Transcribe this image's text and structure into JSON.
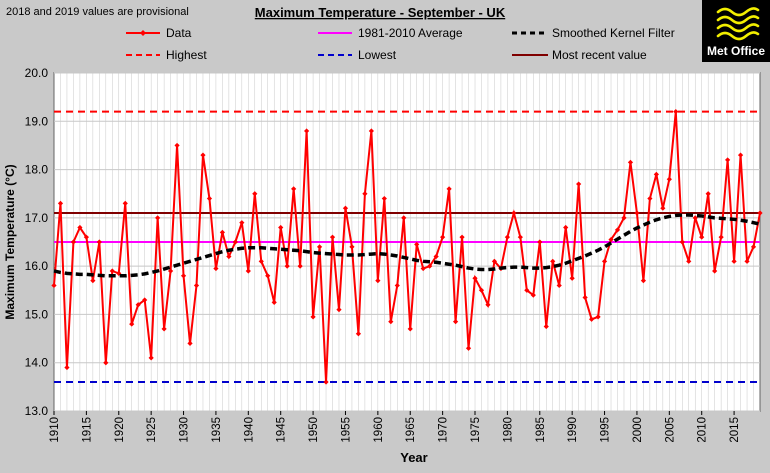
{
  "note": "2018 and 2019 values are provisional",
  "logo": {
    "text": "Met Office"
  },
  "chart_data": {
    "type": "line",
    "title": "Maximum Temperature - September - UK",
    "xlabel": "Year",
    "ylabel": "Maximum Temperature (°C)",
    "xlim": [
      1910,
      2019
    ],
    "ylim": [
      13.0,
      20.0
    ],
    "yticks": [
      13.0,
      14.0,
      15.0,
      16.0,
      17.0,
      18.0,
      19.0,
      20.0
    ],
    "xticks": [
      1910,
      1915,
      1920,
      1925,
      1930,
      1935,
      1940,
      1945,
      1950,
      1955,
      1960,
      1965,
      1970,
      1975,
      1980,
      1985,
      1990,
      1995,
      2000,
      2005,
      2010,
      2015
    ],
    "grid": true,
    "legend": {
      "data": "Data",
      "average": "1981-2010 Average",
      "smoothed": "Smoothed Kernel Filter",
      "highest": "Highest",
      "lowest": "Lowest",
      "recent": "Most recent value"
    },
    "colors": {
      "data": "#ff0000",
      "average": "#ff00ff",
      "smoothed": "#000000",
      "highest": "#ff0000",
      "lowest": "#0000cc",
      "recent": "#800000",
      "plot_bg": "#ffffff",
      "page_bg": "#c9c9c9",
      "grid": "#c8c8c8"
    },
    "x": [
      1910,
      1911,
      1912,
      1913,
      1914,
      1915,
      1916,
      1917,
      1918,
      1919,
      1920,
      1921,
      1922,
      1923,
      1924,
      1925,
      1926,
      1927,
      1928,
      1929,
      1930,
      1931,
      1932,
      1933,
      1934,
      1935,
      1936,
      1937,
      1938,
      1939,
      1940,
      1941,
      1942,
      1943,
      1944,
      1945,
      1946,
      1947,
      1948,
      1949,
      1950,
      1951,
      1952,
      1953,
      1954,
      1955,
      1956,
      1957,
      1958,
      1959,
      1960,
      1961,
      1962,
      1963,
      1964,
      1965,
      1966,
      1967,
      1968,
      1969,
      1970,
      1971,
      1972,
      1973,
      1974,
      1975,
      1976,
      1977,
      1978,
      1979,
      1980,
      1981,
      1982,
      1983,
      1984,
      1985,
      1986,
      1987,
      1988,
      1989,
      1990,
      1991,
      1992,
      1993,
      1994,
      1995,
      1996,
      1997,
      1998,
      1999,
      2000,
      2001,
      2002,
      2003,
      2004,
      2005,
      2006,
      2007,
      2008,
      2009,
      2010,
      2011,
      2012,
      2013,
      2014,
      2015,
      2016,
      2017,
      2018,
      2019
    ],
    "series": [
      {
        "name": "Data",
        "values": [
          15.6,
          17.3,
          13.9,
          16.5,
          16.8,
          16.6,
          15.7,
          16.5,
          14.0,
          15.9,
          15.85,
          17.3,
          14.8,
          15.2,
          15.3,
          14.1,
          17.0,
          14.7,
          15.9,
          18.5,
          15.8,
          14.4,
          15.6,
          18.3,
          17.4,
          15.95,
          16.7,
          16.2,
          16.5,
          16.9,
          15.9,
          17.5,
          16.1,
          15.8,
          15.25,
          16.8,
          16.0,
          17.6,
          16.0,
          18.8,
          14.95,
          16.4,
          13.6,
          16.6,
          15.1,
          17.2,
          16.4,
          14.6,
          17.5,
          18.8,
          15.7,
          17.4,
          14.85,
          15.6,
          17.0,
          14.7,
          16.45,
          15.95,
          16.0,
          16.2,
          16.6,
          17.6,
          14.85,
          16.6,
          14.3,
          15.75,
          15.5,
          15.2,
          16.1,
          15.95,
          16.6,
          17.1,
          16.6,
          15.5,
          15.4,
          16.5,
          14.75,
          16.1,
          15.6,
          16.8,
          15.75,
          17.7,
          15.35,
          14.9,
          14.95,
          16.1,
          16.55,
          16.75,
          17.0,
          18.15,
          17.1,
          15.7,
          17.4,
          17.9,
          17.2,
          17.8,
          19.2,
          16.5,
          16.1,
          17.0,
          16.6,
          17.5,
          15.9,
          16.6,
          18.2,
          16.1,
          18.3,
          16.1,
          16.4,
          17.1
        ]
      },
      {
        "name": "Smoothed Kernel Filter",
        "values": [
          15.9,
          15.87,
          15.85,
          15.84,
          15.83,
          15.83,
          15.82,
          15.81,
          15.8,
          15.8,
          15.8,
          15.8,
          15.81,
          15.82,
          15.84,
          15.87,
          15.9,
          15.94,
          15.98,
          16.02,
          16.06,
          16.1,
          16.14,
          16.18,
          16.22,
          16.26,
          16.3,
          16.33,
          16.35,
          16.37,
          16.38,
          16.38,
          16.38,
          16.37,
          16.36,
          16.35,
          16.34,
          16.33,
          16.32,
          16.3,
          16.28,
          16.27,
          16.26,
          16.25,
          16.24,
          16.23,
          16.23,
          16.23,
          16.24,
          16.25,
          16.26,
          16.25,
          16.23,
          16.21,
          16.18,
          16.15,
          16.12,
          16.1,
          16.09,
          16.08,
          16.06,
          16.04,
          16.02,
          15.99,
          15.96,
          15.94,
          15.93,
          15.93,
          15.94,
          15.96,
          15.97,
          15.98,
          15.98,
          15.97,
          15.96,
          15.96,
          15.97,
          15.99,
          16.02,
          16.06,
          16.11,
          16.16,
          16.21,
          16.27,
          16.33,
          16.4,
          16.48,
          16.56,
          16.64,
          16.72,
          16.79,
          16.85,
          16.91,
          16.96,
          17.0,
          17.03,
          17.05,
          17.06,
          17.06,
          17.05,
          17.04,
          17.02,
          17.0,
          16.99,
          16.98,
          16.97,
          16.95,
          16.93,
          16.9,
          16.87
        ]
      }
    ],
    "average": 16.5,
    "highest": 19.2,
    "lowest": 13.6,
    "most_recent": 17.1
  }
}
